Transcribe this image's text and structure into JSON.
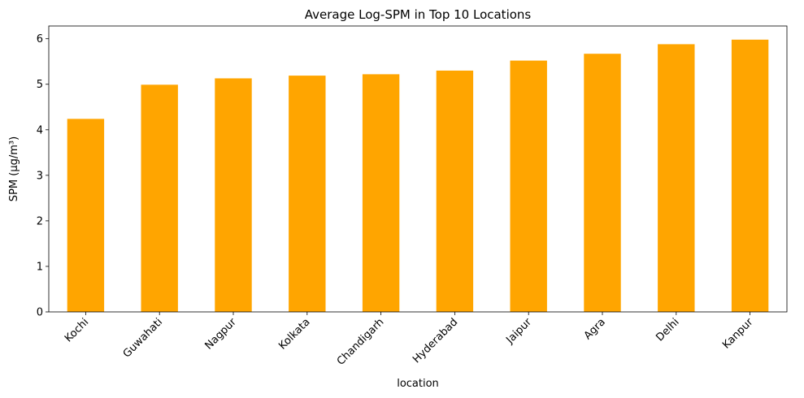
{
  "chart_data": {
    "type": "bar",
    "title": "Average Log-SPM in Top 10 Locations",
    "xlabel": "location",
    "ylabel": "SPM (µg/m³)",
    "categories": [
      "Kochi",
      "Guwahati",
      "Nagpur",
      "Kolkata",
      "Chandigarh",
      "Hyderabad",
      "Jaipur",
      "Agra",
      "Delhi",
      "Kanpur"
    ],
    "values": [
      4.24,
      4.99,
      5.13,
      5.19,
      5.22,
      5.3,
      5.52,
      5.67,
      5.88,
      5.98
    ],
    "ylim": [
      0,
      6.28
    ],
    "yticks": [
      0,
      1,
      2,
      3,
      4,
      5,
      6
    ],
    "bar_color": "#FFA500",
    "grid": false,
    "legend": "none"
  }
}
